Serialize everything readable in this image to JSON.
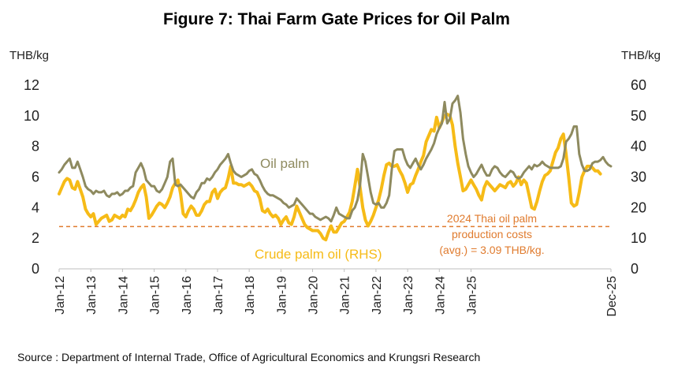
{
  "chart_data": {
    "type": "line",
    "title": "Figure 7: Thai Farm Gate Prices for Oil Palm",
    "ylabel_left": "THB/kg",
    "ylabel_right": "THB/kg",
    "ylim_left": [
      0,
      12
    ],
    "ylim_right": [
      0,
      60
    ],
    "yticks_left": [
      "0",
      "2",
      "4",
      "6",
      "8",
      "10",
      "12"
    ],
    "yticks_right": [
      "0",
      "10",
      "20",
      "30",
      "40",
      "50",
      "60"
    ],
    "x_tick_labels": [
      "Jan-12",
      "Jan-13",
      "Jan-14",
      "Jan-15",
      "Jan-16",
      "Jan-17",
      "Jan-18",
      "Jan-19",
      "Jan-20",
      "Jan-21",
      "Jan-22",
      "Jan-23",
      "Jan-24",
      "Jan-25",
      "Dec-25"
    ],
    "x_start": "Jan-12",
    "x_end": "Dec-25",
    "series": [
      {
        "name": "Oil palm",
        "axis": "left",
        "color": "#8e8a5f",
        "values": [
          6.3,
          6.5,
          6.8,
          7.0,
          7.2,
          6.6,
          6.6,
          7.0,
          6.5,
          6.0,
          5.4,
          5.2,
          5.1,
          4.9,
          5.1,
          5.0,
          5.0,
          5.1,
          4.8,
          4.7,
          4.9,
          4.9,
          5.0,
          4.8,
          4.9,
          5.1,
          5.1,
          5.3,
          5.4,
          6.3,
          6.6,
          6.9,
          6.5,
          5.8,
          5.6,
          5.4,
          5.4,
          5.1,
          5.0,
          5.2,
          5.6,
          6.0,
          7.0,
          7.2,
          5.5,
          5.4,
          5.5,
          5.3,
          5.1,
          4.9,
          4.7,
          4.6,
          5.0,
          5.2,
          5.6,
          5.6,
          5.9,
          5.8,
          6.0,
          6.3,
          6.5,
          6.8,
          7.0,
          7.2,
          7.5,
          6.9,
          6.4,
          6.2,
          6.1,
          6.0,
          6.1,
          6.2,
          6.4,
          6.5,
          6.2,
          6.1,
          5.8,
          5.4,
          5.1,
          4.9,
          4.8,
          4.8,
          4.7,
          4.6,
          4.5,
          4.3,
          4.2,
          4.0,
          4.1,
          4.2,
          4.6,
          4.4,
          4.2,
          4.0,
          3.8,
          3.6,
          3.6,
          3.4,
          3.3,
          3.2,
          3.3,
          3.4,
          3.3,
          3.1,
          3.5,
          4.0,
          3.6,
          3.5,
          3.4,
          3.3,
          3.3,
          3.8,
          4.0,
          4.5,
          5.5,
          7.5,
          7.0,
          6.0,
          5.0,
          4.3,
          4.2,
          4.3,
          4.0,
          4.0,
          4.3,
          4.8,
          6.5,
          7.7,
          7.8,
          7.8,
          7.8,
          7.2,
          6.8,
          6.6,
          6.9,
          7.2,
          6.8,
          6.5,
          6.8,
          7.2,
          7.5,
          7.8,
          8.2,
          8.8,
          9.2,
          9.5,
          10.9,
          9.5,
          9.8,
          10.8,
          11.0,
          11.3,
          10.2,
          8.5,
          7.5,
          6.7,
          6.3,
          6.0,
          6.2,
          6.5,
          6.8,
          6.4,
          6.1,
          6.1,
          6.5,
          6.7,
          6.6,
          6.3,
          6.1,
          6.0,
          6.2,
          6.4,
          6.3,
          6.0,
          5.9,
          6.0,
          6.3,
          6.5,
          6.7,
          6.5,
          6.8,
          6.7,
          6.8,
          7.0,
          6.8,
          6.7,
          6.6,
          6.6,
          6.6,
          6.6,
          6.7,
          7.2,
          8.3,
          8.5,
          8.8,
          9.3,
          9.3,
          7.5,
          6.8,
          6.4,
          6.4,
          6.5,
          6.9,
          7.0,
          7.0,
          7.1,
          7.3,
          7.0,
          6.8,
          6.7
        ]
      },
      {
        "name": "Crude palm oil (RHS)",
        "axis": "right",
        "color": "#f6bb17",
        "values": [
          24.5,
          26.5,
          28.5,
          29.5,
          29.0,
          26.5,
          26.0,
          28.5,
          26.0,
          23.5,
          19.5,
          18.0,
          17.0,
          18.0,
          14.5,
          15.5,
          16.5,
          17.0,
          17.5,
          15.5,
          16.0,
          17.5,
          17.0,
          16.5,
          17.5,
          17.0,
          19.5,
          19.0,
          20.5,
          22.5,
          25.0,
          26.5,
          27.5,
          23.5,
          16.5,
          17.5,
          19.0,
          20.5,
          21.5,
          21.0,
          20.0,
          21.5,
          23.5,
          26.5,
          28.0,
          29.0,
          24.5,
          18.0,
          17.0,
          19.0,
          20.5,
          19.5,
          17.5,
          17.5,
          19.0,
          21.0,
          22.0,
          22.0,
          25.0,
          26.0,
          23.0,
          25.0,
          26.0,
          26.5,
          29.5,
          33.5,
          28.0,
          28.0,
          27.5,
          27.5,
          27.0,
          27.5,
          28.0,
          27.0,
          25.5,
          25.0,
          23.0,
          19.0,
          18.5,
          19.5,
          18.0,
          17.0,
          17.5,
          16.5,
          14.5,
          16.0,
          17.0,
          15.0,
          14.5,
          17.0,
          20.5,
          18.5,
          16.5,
          14.5,
          13.5,
          13.0,
          12.5,
          12.5,
          12.5,
          11.5,
          10.0,
          9.5,
          12.0,
          14.0,
          12.0,
          12.0,
          13.5,
          15.0,
          15.5,
          17.0,
          18.5,
          22.0,
          27.0,
          32.5,
          26.5,
          20.0,
          16.0,
          14.0,
          15.5,
          17.5,
          20.0,
          22.5,
          26.0,
          30.5,
          34.0,
          34.5,
          33.5,
          33.5,
          34.0,
          32.0,
          30.5,
          28.0,
          25.0,
          27.5,
          28.0,
          30.5,
          32.5,
          35.0,
          37.0,
          41.5,
          43.5,
          45.5,
          45.0,
          49.5,
          46.0,
          48.0,
          50.0,
          50.5,
          50.0,
          47.0,
          40.0,
          34.5,
          30.0,
          25.5,
          26.0,
          27.5,
          29.0,
          27.5,
          26.0,
          24.0,
          22.5,
          26.5,
          28.5,
          27.5,
          26.5,
          25.5,
          26.5,
          27.5,
          27.0,
          26.5,
          28.0,
          28.5,
          27.0,
          28.0,
          30.0,
          27.5,
          29.0,
          28.0,
          24.0,
          20.0,
          19.5,
          22.0,
          25.5,
          28.5,
          30.5,
          31.0,
          32.0,
          35.0,
          38.0,
          39.5,
          42.5,
          44.0,
          37.5,
          30.0,
          21.5,
          20.5,
          21.0,
          25.0,
          30.0,
          32.0,
          33.5,
          33.5,
          33.0,
          32.0,
          32.0,
          31.0
        ]
      }
    ],
    "reference_line": {
      "axis": "right",
      "value": 13.8,
      "color": "#e07b2e",
      "style": "dashed"
    },
    "annotations": {
      "oil_palm_label": "Oil palm",
      "cpo_label": "Crude palm oil (RHS)",
      "cost_line1": "2024 Thai oil palm",
      "cost_line2": "production costs",
      "cost_line3": "(avg.)  = 3.09 THB/kg."
    },
    "source": "Source : Department of Internal Trade, Office of Agricultural Economics and Krungsri Research",
    "grid": false,
    "legend": "none"
  }
}
